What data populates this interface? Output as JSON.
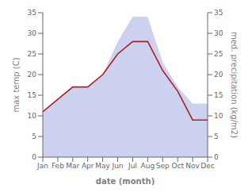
{
  "chart_data": {
    "type": "line",
    "categories": [
      "Jan",
      "Feb",
      "Mar",
      "Apr",
      "May",
      "Jun",
      "Jul",
      "Aug",
      "Sep",
      "Oct",
      "Nov",
      "Dec"
    ],
    "xlabel": "date (month)",
    "ylabel": "max temp (C)",
    "y2label": "med. precipitation (kg/m2)",
    "ylim": [
      0,
      35
    ],
    "yticks": [
      0,
      5,
      10,
      15,
      20,
      25,
      30,
      35
    ],
    "y2lim": [
      0,
      35
    ],
    "y2ticks": [
      0,
      5,
      10,
      15,
      20,
      25,
      30,
      35
    ],
    "grid": false,
    "series": [
      {
        "type": "line",
        "color": "#aa2222",
        "values": [
          11,
          14,
          17,
          17,
          20,
          25,
          28,
          28,
          21,
          16,
          9,
          9
        ]
      },
      {
        "type": "area",
        "axis": "y2",
        "color": "#b0b8e8",
        "values": [
          11,
          14,
          17,
          17,
          20,
          28,
          34,
          34,
          23,
          17,
          13,
          13
        ]
      }
    ]
  }
}
